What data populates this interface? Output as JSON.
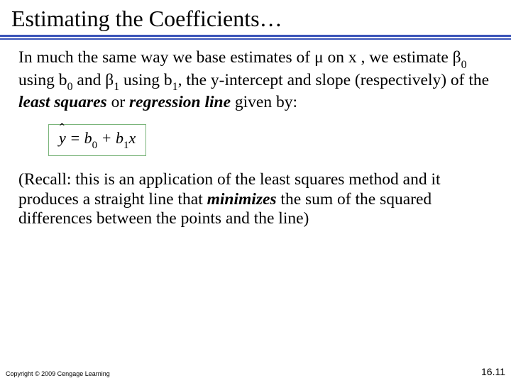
{
  "title": "Estimating the Coefficients…",
  "para1_a": "In much the same way we base estimates of μ on x , we estimate β",
  "para1_b": " using b",
  "para1_c": " and β",
  "para1_d": " using b",
  "para1_e": ", the y-intercept and slope (respectively) of the ",
  "para1_bold1": "least squares",
  "para1_f": " or ",
  "para1_bold2": "regression line",
  "para1_g": " given by:",
  "sub0": "0",
  "sub1": "1",
  "formula_y": "y",
  "formula_eq": " = b",
  "formula_plus": " + b",
  "formula_x": "x",
  "para2_a": "(Recall: this is an application of the least squares method and it produces a straight line that ",
  "para2_bold": "minimizes",
  "para2_b": " the sum of the squared differences between the points and the line)",
  "copyright": "Copyright © 2009 Cengage Learning",
  "pagenum": "16.11",
  "colors": {
    "underline": "#3a53b8",
    "formula_border": "#7bb57b",
    "background": "#ffffff",
    "text": "#000000"
  }
}
